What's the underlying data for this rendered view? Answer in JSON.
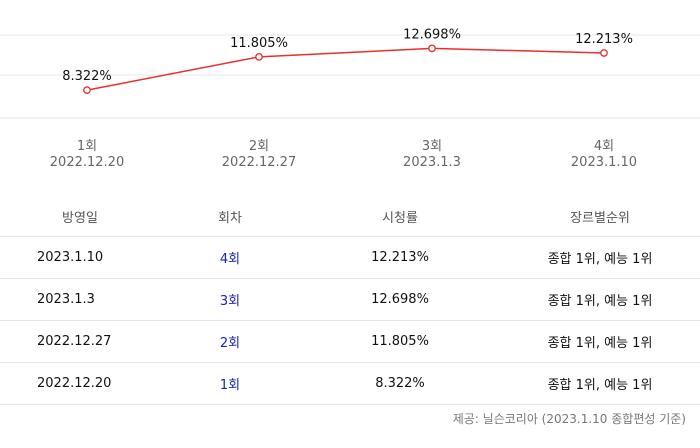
{
  "chart_data": {
    "type": "line",
    "categories": [
      "1회\n2022.12.20",
      "2회\n2022.12.27",
      "3회\n2023.1.3",
      "4회\n2023.1.10"
    ],
    "x_episode": [
      "1회",
      "2회",
      "3회",
      "4회"
    ],
    "x_date": [
      "2022.12.20",
      "2022.12.27",
      "2023.1.3",
      "2023.1.10"
    ],
    "series": [
      {
        "values": [
          8.322,
          11.805,
          12.698,
          12.213
        ]
      }
    ],
    "data_labels": [
      "8.322%",
      "11.805%",
      "12.698%",
      "12.213%"
    ],
    "ylim": [
      5.4,
      14.1
    ],
    "grid": true,
    "line_color": "#e8302f"
  },
  "table": {
    "headers": [
      "방영일",
      "회차",
      "시청률",
      "장르별순위"
    ],
    "rows": [
      {
        "date": "2023.1.10",
        "episode": "4회",
        "rating": "12.213%",
        "rank": "종합 1위, 예능 1위"
      },
      {
        "date": "2023.1.3",
        "episode": "3회",
        "rating": "12.698%",
        "rank": "종합 1위, 예능 1위"
      },
      {
        "date": "2022.12.27",
        "episode": "2회",
        "rating": "11.805%",
        "rank": "종합 1위, 예능 1위"
      },
      {
        "date": "2022.12.20",
        "episode": "1회",
        "rating": "8.322%",
        "rank": "종합 1위, 예능 1위"
      }
    ]
  },
  "footer": {
    "source": "제공: 닐슨코리아 (2023.1.10 종합편성 기준)"
  }
}
